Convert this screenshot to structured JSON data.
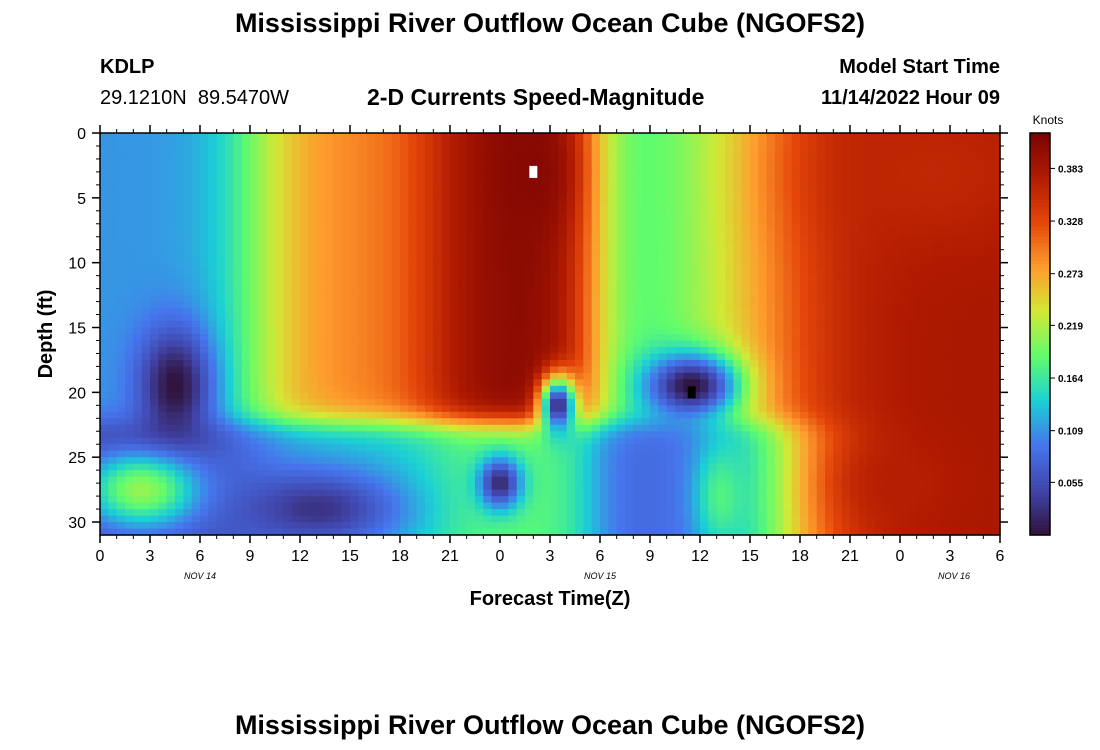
{
  "page": {
    "title_top": "Mississippi River Outflow Ocean Cube (NGOFS2)",
    "title_bottom": "Mississippi River Outflow Ocean Cube (NGOFS2)",
    "station_id": "KDLP",
    "station_coords": "29.1210N  89.5470W",
    "plot_subtitle": "2-D Currents Speed-Magnitude",
    "model_start_label": "Model Start Time",
    "model_start_value": "11/14/2022 Hour 09"
  },
  "chart_data": {
    "type": "heatmap",
    "title": "2-D Currents Speed-Magnitude",
    "xlabel": "Forecast Time(Z)",
    "ylabel": "Depth (ft)",
    "x_tick_labels": [
      "0",
      "3",
      "6",
      "9",
      "12",
      "15",
      "18",
      "21",
      "0",
      "3",
      "6",
      "9",
      "12",
      "15",
      "18",
      "21",
      "0",
      "3",
      "6"
    ],
    "x_range_hours": [
      0,
      54
    ],
    "date_labels": [
      "NOV 14",
      "NOV 15",
      "NOV 16"
    ],
    "y_ticks": [
      0,
      5,
      10,
      15,
      20,
      25,
      30
    ],
    "y_range_ft": [
      0,
      31
    ],
    "y_inverted": true,
    "colorbar": {
      "title": "Knots",
      "tick_labels": [
        "0.383",
        "0.328",
        "0.273",
        "0.219",
        "0.164",
        "0.109",
        "0.055"
      ],
      "range_knots": [
        0,
        0.42
      ],
      "colors": [
        "#30123b",
        "#4145ab",
        "#4675ed",
        "#1bd0d5",
        "#61fc6c",
        "#d2e935",
        "#fe9b2d",
        "#e4460a",
        "#b11b01",
        "#7a0403"
      ]
    },
    "grid": false,
    "legend": "colorbar-right",
    "markers": [
      {
        "name": "max",
        "hour": 26,
        "depth_ft": 3,
        "color": "#ffffff"
      },
      {
        "name": "min",
        "hour": 35.5,
        "depth_ft": 20,
        "color": "#000000"
      }
    ],
    "hotspots": [
      {
        "hour": 4.5,
        "depth_ft": 19.5,
        "speed": 0.0,
        "sx": 2.2,
        "sy": 4.5
      },
      {
        "hour": 13,
        "depth_ft": 29,
        "speed": 0.03,
        "sx": 5.0,
        "sy": 3.0
      },
      {
        "hour": 26,
        "depth_ft": 3,
        "speed": 0.41,
        "sx": 2.2,
        "sy": 5.0
      },
      {
        "hour": 27.5,
        "depth_ft": 21,
        "speed": 0.02,
        "sx": 1.1,
        "sy": 2.2
      },
      {
        "hour": 24,
        "depth_ft": 27,
        "speed": 0.02,
        "sx": 1.3,
        "sy": 2.0
      },
      {
        "hour": 35.5,
        "depth_ft": 19.5,
        "speed": 0.0,
        "sx": 2.8,
        "sy": 2.5
      },
      {
        "hour": 48,
        "depth_ft": 27,
        "speed": 0.37,
        "sx": 3.5,
        "sy": 3.0
      },
      {
        "hour": 50,
        "depth_ft": 3,
        "speed": 0.36,
        "sx": 7.0,
        "sy": 6.0
      }
    ]
  }
}
